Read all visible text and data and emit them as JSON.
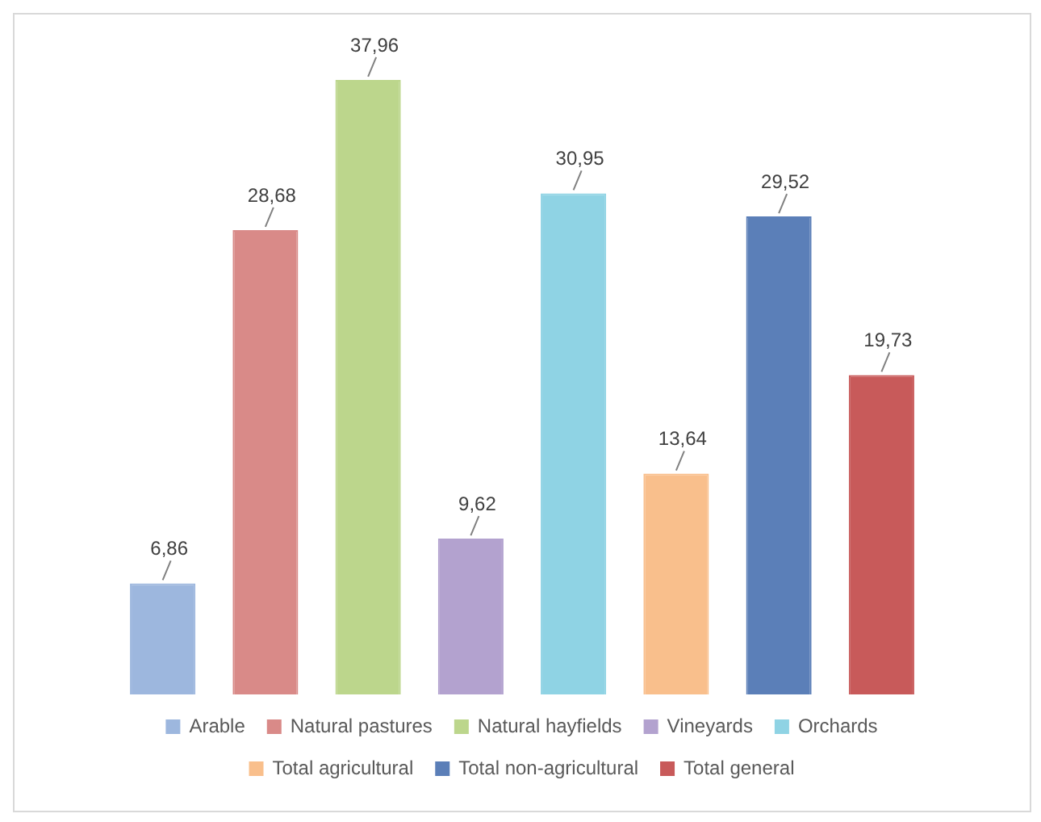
{
  "chart_data": {
    "type": "bar",
    "categories": [
      null,
      null,
      null,
      null,
      null,
      null,
      null,
      null
    ],
    "series": [
      {
        "name": "Arable",
        "color": "#9db7de",
        "values": [
          6.86,
          null,
          null,
          null,
          null,
          null,
          null,
          null
        ],
        "value_labels": [
          "6,86",
          null,
          null,
          null,
          null,
          null,
          null,
          null
        ]
      },
      {
        "name": "Natural pastures",
        "color": "#d98a88",
        "values": [
          null,
          28.68,
          null,
          null,
          null,
          null,
          null,
          null
        ],
        "value_labels": [
          null,
          "28,68",
          null,
          null,
          null,
          null,
          null,
          null
        ]
      },
      {
        "name": "Natural hayfields",
        "color": "#bcd68c",
        "values": [
          null,
          null,
          37.96,
          null,
          null,
          null,
          null,
          null
        ],
        "value_labels": [
          null,
          null,
          "37,96",
          null,
          null,
          null,
          null,
          null
        ]
      },
      {
        "name": "Vineyards",
        "color": "#b3a2cf",
        "values": [
          null,
          null,
          null,
          9.62,
          null,
          null,
          null,
          null
        ],
        "value_labels": [
          null,
          null,
          null,
          "9,62",
          null,
          null,
          null,
          null
        ]
      },
      {
        "name": "Orchards",
        "color": "#8fd3e4",
        "values": [
          null,
          null,
          null,
          null,
          30.95,
          null,
          null,
          null
        ],
        "value_labels": [
          null,
          null,
          null,
          null,
          "30,95",
          null,
          null,
          null
        ]
      },
      {
        "name": "Total agricultural",
        "color": "#f9bf8c",
        "values": [
          null,
          null,
          null,
          null,
          null,
          13.64,
          null,
          null
        ],
        "value_labels": [
          null,
          null,
          null,
          null,
          null,
          "13,64",
          null,
          null
        ]
      },
      {
        "name": "Total non-agricultural",
        "color": "#5b7fb8",
        "values": [
          null,
          null,
          null,
          null,
          null,
          null,
          29.52,
          null
        ],
        "value_labels": [
          null,
          null,
          null,
          null,
          null,
          null,
          "29,52",
          null
        ]
      },
      {
        "name": "Total general",
        "color": "#c85a5a",
        "values": [
          null,
          null,
          null,
          null,
          null,
          null,
          null,
          19.73
        ],
        "value_labels": [
          null,
          null,
          null,
          null,
          null,
          null,
          null,
          "19,73"
        ]
      }
    ],
    "stacked": true,
    "legend": "bottom",
    "tick_labels": false
  }
}
